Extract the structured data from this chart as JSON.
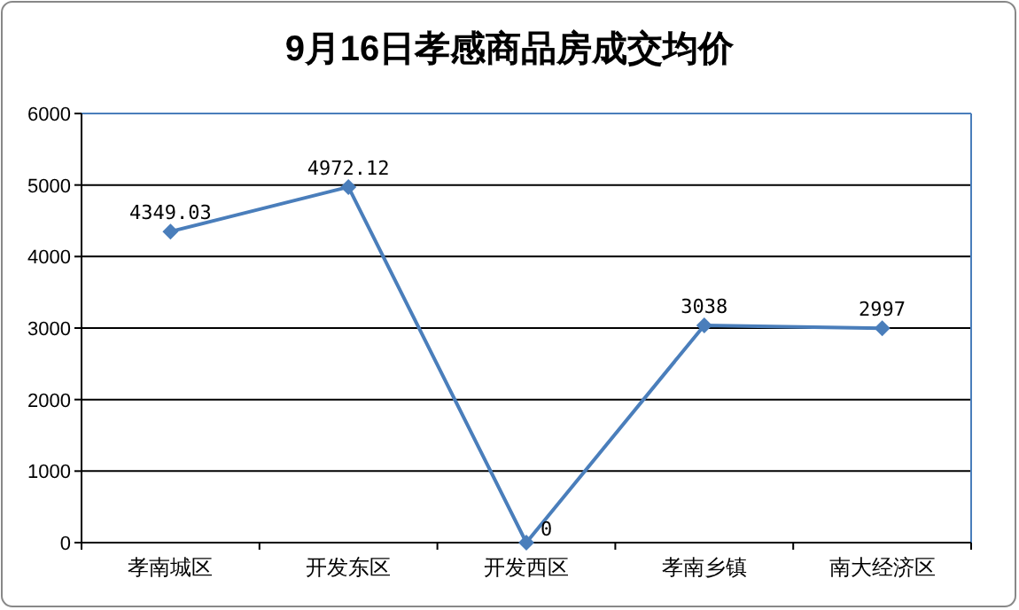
{
  "chart_data": {
    "type": "line",
    "title": "9月16日孝感商品房成交均价",
    "categories": [
      "孝南城区",
      "开发东区",
      "开发西区",
      "孝南乡镇",
      "南大经济区"
    ],
    "series": [
      {
        "color": "#4a7ebb",
        "values": [
          4349.03,
          4972.12,
          0,
          3038,
          2997
        ]
      }
    ],
    "ylim": [
      0,
      6000
    ],
    "yticks": [
      0,
      1000,
      2000,
      3000,
      4000,
      5000,
      6000
    ],
    "grid": "y",
    "marker": "diamond",
    "line_style": "solid",
    "data_labels": true
  }
}
